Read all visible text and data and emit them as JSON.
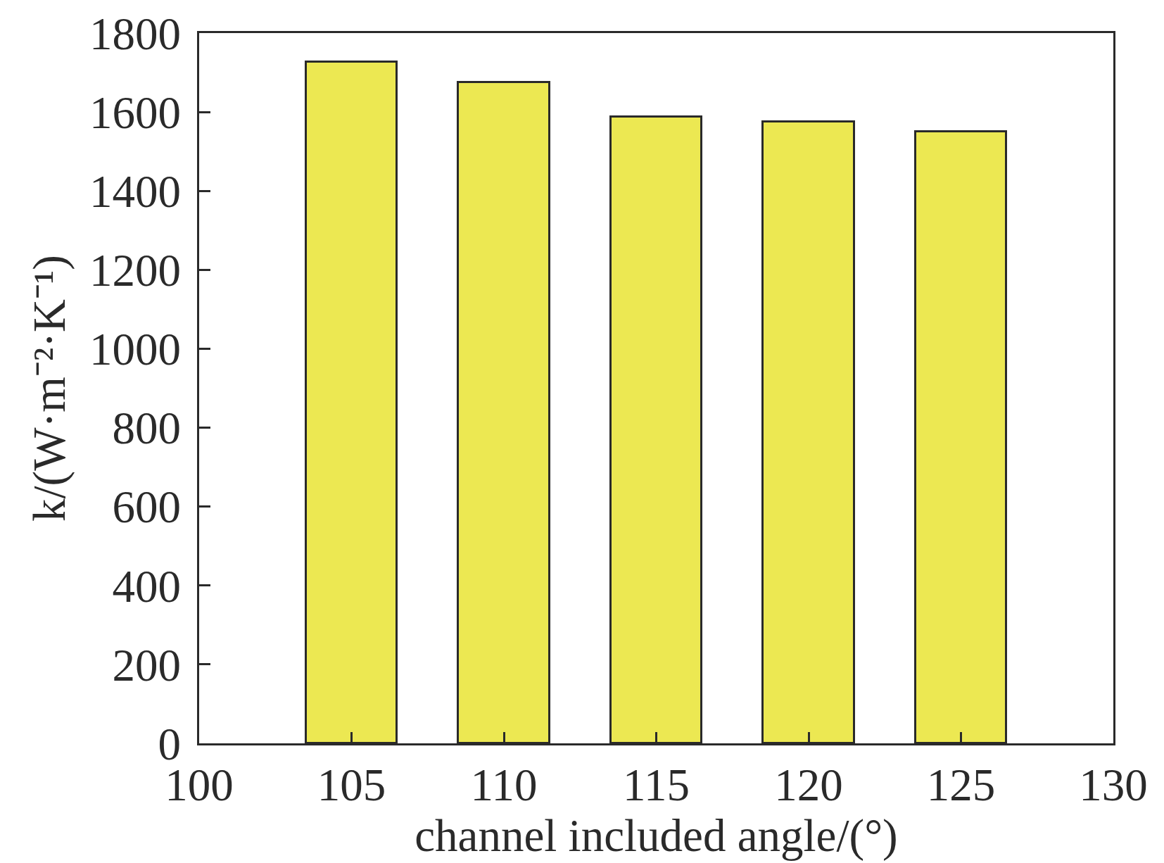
{
  "chart_data": {
    "type": "bar",
    "xlabel": "channel included angle/(°)",
    "ylabel": "k/(W·m⁻²·K⁻¹)",
    "x": [
      105,
      110,
      115,
      120,
      125
    ],
    "values": [
      1727,
      1675,
      1587,
      1576,
      1551
    ],
    "color": "#ece852",
    "xlim": [
      100,
      130
    ],
    "xticks": [
      100,
      105,
      110,
      115,
      120,
      125,
      130
    ],
    "ylim": [
      0,
      1800
    ],
    "yticks": [
      0,
      200,
      400,
      600,
      800,
      1000,
      1200,
      1400,
      1600,
      1800
    ],
    "grid": false
  }
}
